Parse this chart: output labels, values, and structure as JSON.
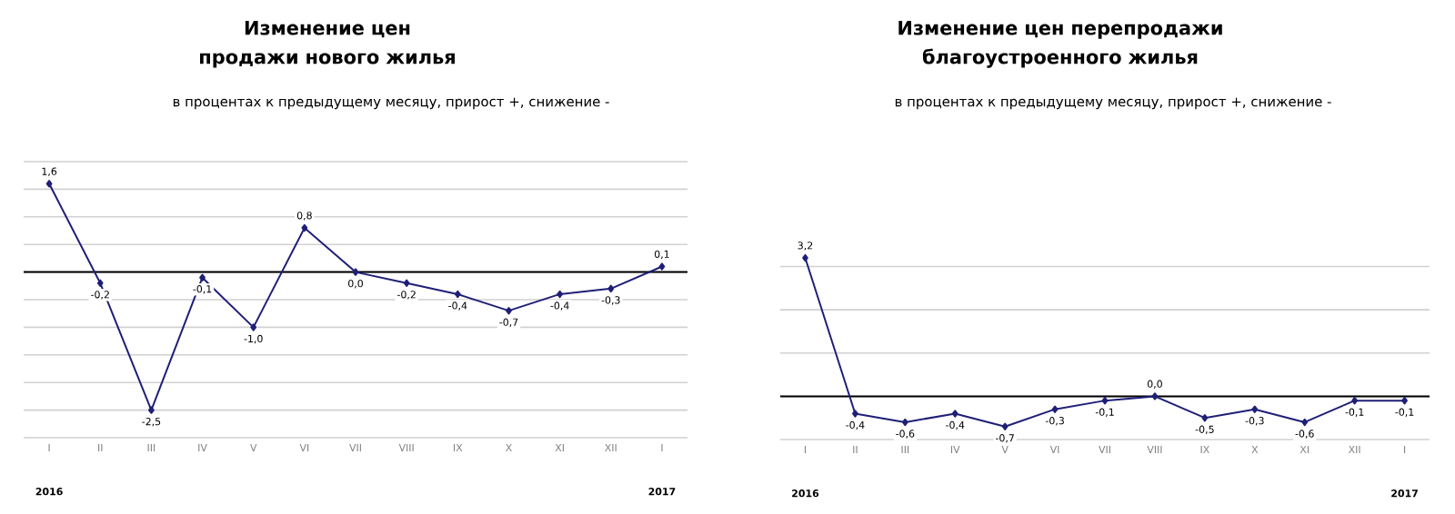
{
  "chart_data": [
    {
      "type": "line",
      "title": "Изменение цен продажи нового жилья",
      "subtitle": "в процентах к предыдущему месяцу, прирост +, снижение -",
      "categories": [
        "I",
        "II",
        "III",
        "IV",
        "V",
        "VI",
        "VII",
        "VIII",
        "IX",
        "X",
        "XI",
        "XII",
        "I"
      ],
      "values": [
        1.6,
        -0.2,
        -2.5,
        -0.1,
        -1.0,
        0.8,
        0.0,
        -0.2,
        -0.4,
        -0.7,
        -0.4,
        -0.3,
        0.1
      ],
      "value_labels": [
        "1,6",
        "-0,2",
        "-2,5",
        "-0,1",
        "-1,0",
        "0,8",
        "0,0",
        "-0,2",
        "-0,4",
        "-0,7",
        "-0,4",
        "-0,3",
        "0,1"
      ],
      "color": "#1f1f78",
      "marker": "diamond",
      "grid": "y",
      "tick_labels": "x",
      "yticks": [
        {
          "value": -3,
          "label": null
        },
        {
          "value": -2.5,
          "label": null
        },
        {
          "value": -2,
          "label": null
        },
        {
          "value": -1.5,
          "label": null
        },
        {
          "value": -1,
          "label": null
        },
        {
          "value": -0.5,
          "label": null
        },
        {
          "value": 0,
          "label": null
        },
        {
          "value": 0.5,
          "label": null
        },
        {
          "value": 1,
          "label": null
        },
        {
          "value": 1.5,
          "label": null
        },
        {
          "value": 2,
          "label": null
        }
      ],
      "ref_lines": [
        {
          "axis": "y",
          "value": 0,
          "color": "#000000"
        }
      ],
      "annotations": [
        "2016",
        "2017"
      ]
    },
    {
      "type": "line",
      "title": "Изменение цен перепродажи благоустроенного жилья",
      "subtitle": "в процентах к предыдущему месяцу, прирост +, снижение -",
      "categories": [
        "I",
        "II",
        "III",
        "IV",
        "V",
        "VI",
        "VII",
        "VIII",
        "IX",
        "X",
        "XI",
        "XII",
        "I"
      ],
      "values": [
        3.2,
        -0.4,
        -0.6,
        -0.4,
        -0.7,
        -0.3,
        -0.1,
        0.0,
        -0.5,
        -0.3,
        -0.6,
        -0.1,
        -0.1
      ],
      "value_labels": [
        "3,2",
        "-0,4",
        "-0,6",
        "-0,4",
        "-0,7",
        "-0,3",
        "-0,1",
        "0,0",
        "-0,5",
        "-0,3",
        "-0,6",
        "-0,1",
        "-0,1"
      ],
      "color": "#1f1f78",
      "marker": "diamond",
      "grid": "y",
      "tick_labels": "x",
      "yticks": [
        {
          "value": -1,
          "label": null
        },
        {
          "value": 0,
          "label": null
        },
        {
          "value": 1,
          "label": null
        },
        {
          "value": 2,
          "label": null
        },
        {
          "value": 3,
          "label": null
        }
      ],
      "ref_lines": [
        {
          "axis": "y",
          "value": 0,
          "color": "#000000"
        }
      ],
      "annotations": [
        "2016",
        "2017"
      ]
    }
  ]
}
